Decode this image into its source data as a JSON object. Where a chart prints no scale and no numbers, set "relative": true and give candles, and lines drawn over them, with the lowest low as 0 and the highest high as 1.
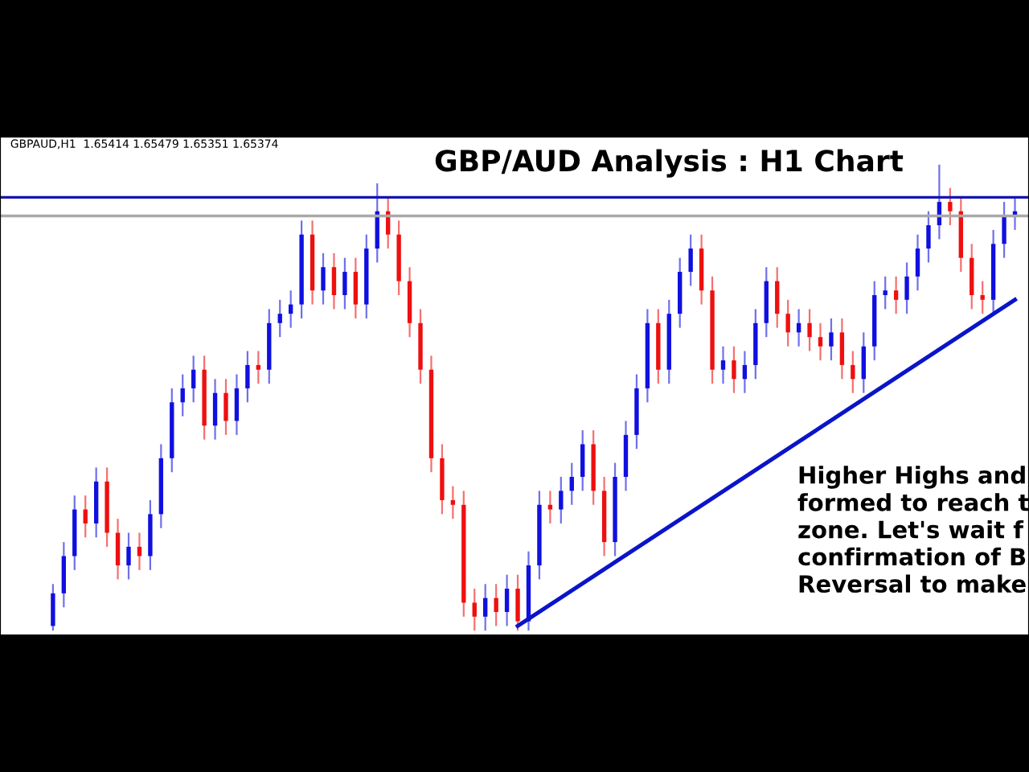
{
  "chart_data": {
    "type": "candlestick",
    "title": "GBP/AUD Analysis : H1 Chart",
    "relative": true,
    "categories": [
      null,
      null,
      null,
      null,
      null,
      null,
      null,
      null,
      null,
      null,
      null,
      null,
      null,
      null,
      null,
      null,
      null,
      null,
      null,
      null,
      null,
      null,
      null,
      null,
      null,
      null,
      null,
      null,
      null,
      null,
      null,
      null,
      null,
      null,
      null,
      null,
      null,
      null,
      null,
      null,
      null,
      null,
      null,
      null,
      null,
      null,
      null,
      null,
      null,
      null,
      null,
      null,
      null,
      null,
      null,
      null,
      null,
      null,
      null,
      null,
      null,
      null,
      null,
      null,
      null,
      null,
      null,
      null,
      null,
      null,
      null,
      null,
      null,
      null,
      null,
      null,
      null,
      null,
      null,
      null,
      null,
      null,
      null,
      null,
      null,
      null,
      null,
      null,
      null,
      null
    ],
    "ohlc": [
      [
        0.01,
        0.1,
        0,
        0.08
      ],
      [
        0.08,
        0.19,
        0.05,
        0.16
      ],
      [
        0.16,
        0.29,
        0.13,
        0.26
      ],
      [
        0.26,
        0.29,
        0.2,
        0.23
      ],
      [
        0.23,
        0.35,
        0.2,
        0.32
      ],
      [
        0.32,
        0.35,
        0.18,
        0.21
      ],
      [
        0.21,
        0.24,
        0.11,
        0.14
      ],
      [
        0.14,
        0.21,
        0.11,
        0.18
      ],
      [
        0.18,
        0.21,
        0.13,
        0.16
      ],
      [
        0.16,
        0.28,
        0.13,
        0.25
      ],
      [
        0.25,
        0.4,
        0.22,
        0.37
      ],
      [
        0.37,
        0.52,
        0.34,
        0.49
      ],
      [
        0.49,
        0.55,
        0.46,
        0.52
      ],
      [
        0.52,
        0.59,
        0.49,
        0.56
      ],
      [
        0.56,
        0.59,
        0.41,
        0.44
      ],
      [
        0.44,
        0.54,
        0.41,
        0.51
      ],
      [
        0.51,
        0.54,
        0.42,
        0.45
      ],
      [
        0.45,
        0.55,
        0.42,
        0.52
      ],
      [
        0.52,
        0.6,
        0.49,
        0.57
      ],
      [
        0.57,
        0.6,
        0.53,
        0.56
      ],
      [
        0.56,
        0.69,
        0.53,
        0.66
      ],
      [
        0.66,
        0.71,
        0.63,
        0.68
      ],
      [
        0.68,
        0.73,
        0.65,
        0.7
      ],
      [
        0.7,
        0.88,
        0.67,
        0.85
      ],
      [
        0.85,
        0.88,
        0.7,
        0.73
      ],
      [
        0.73,
        0.81,
        0.7,
        0.78
      ],
      [
        0.78,
        0.81,
        0.69,
        0.72
      ],
      [
        0.72,
        0.8,
        0.69,
        0.77
      ],
      [
        0.77,
        0.8,
        0.67,
        0.7
      ],
      [
        0.7,
        0.85,
        0.67,
        0.82
      ],
      [
        0.82,
        0.96,
        0.79,
        0.9
      ],
      [
        0.9,
        0.93,
        0.82,
        0.85
      ],
      [
        0.85,
        0.88,
        0.72,
        0.75
      ],
      [
        0.75,
        0.78,
        0.63,
        0.66
      ],
      [
        0.66,
        0.69,
        0.53,
        0.56
      ],
      [
        0.56,
        0.59,
        0.34,
        0.37
      ],
      [
        0.37,
        0.4,
        0.25,
        0.28
      ],
      [
        0.28,
        0.31,
        0.24,
        0.27
      ],
      [
        0.27,
        0.3,
        0.03,
        0.06
      ],
      [
        0.06,
        0.09,
        0,
        0.03
      ],
      [
        0.03,
        0.1,
        0,
        0.07
      ],
      [
        0.07,
        0.1,
        0.01,
        0.04
      ],
      [
        0.04,
        0.12,
        0.01,
        0.09
      ],
      [
        0.09,
        0.12,
        0,
        0.02
      ],
      [
        0.02,
        0.17,
        0,
        0.14
      ],
      [
        0.14,
        0.3,
        0.11,
        0.27
      ],
      [
        0.27,
        0.3,
        0.23,
        0.26
      ],
      [
        0.26,
        0.33,
        0.23,
        0.3
      ],
      [
        0.3,
        0.36,
        0.27,
        0.33
      ],
      [
        0.33,
        0.43,
        0.3,
        0.4
      ],
      [
        0.4,
        0.43,
        0.27,
        0.3
      ],
      [
        0.3,
        0.33,
        0.16,
        0.19
      ],
      [
        0.19,
        0.36,
        0.16,
        0.33
      ],
      [
        0.33,
        0.45,
        0.3,
        0.42
      ],
      [
        0.42,
        0.55,
        0.39,
        0.52
      ],
      [
        0.52,
        0.69,
        0.49,
        0.66
      ],
      [
        0.66,
        0.69,
        0.53,
        0.56
      ],
      [
        0.56,
        0.71,
        0.53,
        0.68
      ],
      [
        0.68,
        0.8,
        0.65,
        0.77
      ],
      [
        0.77,
        0.85,
        0.74,
        0.82
      ],
      [
        0.82,
        0.85,
        0.7,
        0.73
      ],
      [
        0.73,
        0.76,
        0.53,
        0.56
      ],
      [
        0.56,
        0.61,
        0.53,
        0.58
      ],
      [
        0.58,
        0.61,
        0.51,
        0.54
      ],
      [
        0.54,
        0.6,
        0.51,
        0.57
      ],
      [
        0.57,
        0.69,
        0.54,
        0.66
      ],
      [
        0.66,
        0.78,
        0.63,
        0.75
      ],
      [
        0.75,
        0.78,
        0.65,
        0.68
      ],
      [
        0.68,
        0.71,
        0.61,
        0.64
      ],
      [
        0.64,
        0.69,
        0.61,
        0.66
      ],
      [
        0.66,
        0.69,
        0.6,
        0.63
      ],
      [
        0.63,
        0.66,
        0.58,
        0.61
      ],
      [
        0.61,
        0.67,
        0.58,
        0.64
      ],
      [
        0.64,
        0.67,
        0.54,
        0.57
      ],
      [
        0.57,
        0.6,
        0.51,
        0.54
      ],
      [
        0.54,
        0.64,
        0.51,
        0.61
      ],
      [
        0.61,
        0.75,
        0.58,
        0.72
      ],
      [
        0.72,
        0.76,
        0.69,
        0.73
      ],
      [
        0.73,
        0.76,
        0.68,
        0.71
      ],
      [
        0.71,
        0.79,
        0.68,
        0.76
      ],
      [
        0.76,
        0.85,
        0.73,
        0.82
      ],
      [
        0.82,
        0.9,
        0.79,
        0.87
      ],
      [
        0.87,
        1,
        0.84,
        0.92
      ],
      [
        0.92,
        0.95,
        0.87,
        0.9
      ],
      [
        0.9,
        0.93,
        0.77,
        0.8
      ],
      [
        0.8,
        0.83,
        0.69,
        0.72
      ],
      [
        0.72,
        0.75,
        0.68,
        0.71
      ],
      [
        0.71,
        0.86,
        0.68,
        0.83
      ],
      [
        0.83,
        0.92,
        0.8,
        0.89
      ],
      [
        0.89,
        0.93,
        0.86,
        0.9
      ]
    ],
    "series": [
      {
        "type": "line",
        "color": "#0a14c8",
        "values": [
          null,
          null,
          null,
          null,
          null,
          null,
          null,
          null,
          null,
          null,
          null,
          null,
          null,
          null,
          null,
          null,
          null,
          null,
          null,
          null,
          null,
          null,
          null,
          null,
          null,
          null,
          null,
          null,
          null,
          null,
          null,
          null,
          null,
          null,
          null,
          null,
          null,
          null,
          null,
          null,
          null,
          null,
          null,
          0.01,
          null,
          null,
          null,
          null,
          null,
          null,
          null,
          null,
          null,
          null,
          null,
          null,
          null,
          null,
          null,
          null,
          null,
          null,
          null,
          null,
          null,
          null,
          null,
          null,
          null,
          null,
          null,
          null,
          null,
          null,
          null,
          null,
          null,
          null,
          null,
          null,
          null,
          null,
          null,
          null,
          null,
          null,
          null,
          null,
          null,
          0.71
        ]
      }
    ],
    "ref_lines": [
      {
        "axis": "y",
        "value": 0.93,
        "color": "#1414b4"
      },
      {
        "axis": "y",
        "value": 0.89,
        "color": "#a9a9a9"
      }
    ],
    "annotations": [
      "GBPAUD,H1  1.65414 1.65479 1.65351 1.65374",
      "Higher Highs and\nformed to reach t\nzone. Let's wait f\nconfirmation of B\nReversal to make"
    ]
  }
}
